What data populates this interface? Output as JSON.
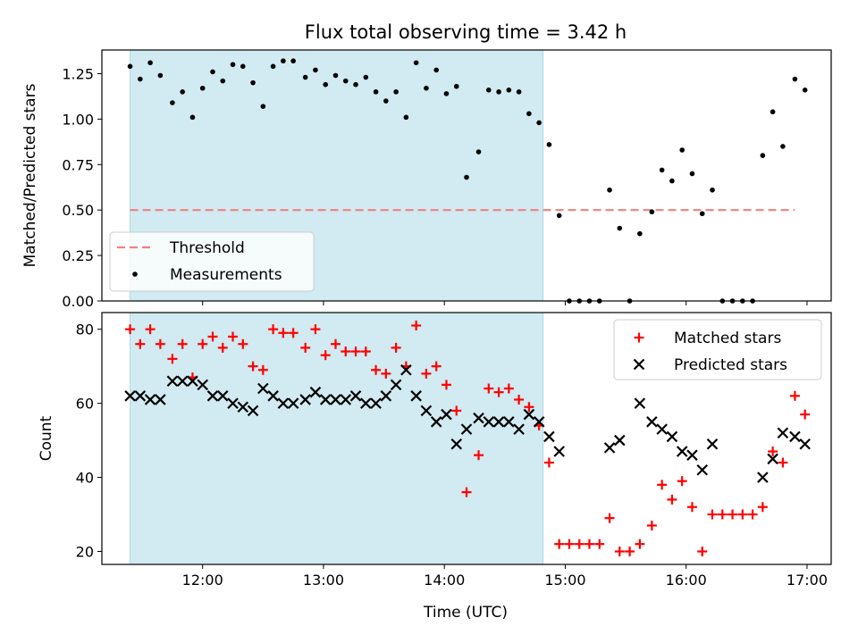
{
  "chart_data": [
    {
      "type": "scatter",
      "title": "Flux total observing time = 3.42 h",
      "ylabel": "Matched/Predicted stars",
      "xlabel": "",
      "ylim": [
        0,
        1.38
      ],
      "xlim": [
        "11:10",
        "17:12"
      ],
      "xticks": [
        "12:00",
        "13:00",
        "14:00",
        "15:00",
        "16:00",
        "17:00"
      ],
      "yticks": [
        "0.00",
        "0.25",
        "0.50",
        "0.75",
        "1.00",
        "1.25"
      ],
      "shaded_interval": [
        "11:24",
        "14:49"
      ],
      "shade_color": "#add8e6",
      "threshold": {
        "name": "Threshold",
        "value": 0.5,
        "x_start": "11:24",
        "x_end": "16:54",
        "color": "#f08080"
      },
      "legend": {
        "position": "bottom-left",
        "entries": [
          "Threshold",
          "Measurements"
        ]
      },
      "series": [
        {
          "name": "Measurements",
          "color": "#000000",
          "marker": "dot",
          "points": [
            [
              "11:24",
              1.29
            ],
            [
              "11:29",
              1.22
            ],
            [
              "11:34",
              1.31
            ],
            [
              "11:39",
              1.24
            ],
            [
              "11:45",
              1.09
            ],
            [
              "11:50",
              1.15
            ],
            [
              "11:55",
              1.01
            ],
            [
              "12:00",
              1.17
            ],
            [
              "12:05",
              1.26
            ],
            [
              "12:10",
              1.21
            ],
            [
              "12:15",
              1.3
            ],
            [
              "12:20",
              1.29
            ],
            [
              "12:25",
              1.2
            ],
            [
              "12:30",
              1.07
            ],
            [
              "12:35",
              1.29
            ],
            [
              "12:40",
              1.32
            ],
            [
              "12:45",
              1.32
            ],
            [
              "12:51",
              1.23
            ],
            [
              "12:56",
              1.27
            ],
            [
              "13:01",
              1.19
            ],
            [
              "13:06",
              1.24
            ],
            [
              "13:11",
              1.21
            ],
            [
              "13:16",
              1.19
            ],
            [
              "13:21",
              1.23
            ],
            [
              "13:26",
              1.15
            ],
            [
              "13:31",
              1.1
            ],
            [
              "13:36",
              1.15
            ],
            [
              "13:41",
              1.01
            ],
            [
              "13:46",
              1.31
            ],
            [
              "13:51",
              1.17
            ],
            [
              "13:56",
              1.27
            ],
            [
              "14:01",
              1.14
            ],
            [
              "14:06",
              1.18
            ],
            [
              "14:11",
              0.68
            ],
            [
              "14:17",
              0.82
            ],
            [
              "14:22",
              1.16
            ],
            [
              "14:27",
              1.15
            ],
            [
              "14:32",
              1.16
            ],
            [
              "14:37",
              1.15
            ],
            [
              "14:42",
              1.03
            ],
            [
              "14:47",
              0.98
            ],
            [
              "14:52",
              0.86
            ],
            [
              "14:57",
              0.47
            ],
            [
              "15:02",
              0.0
            ],
            [
              "15:07",
              0.0
            ],
            [
              "15:12",
              0.0
            ],
            [
              "15:17",
              0.0
            ],
            [
              "15:22",
              0.61
            ],
            [
              "15:27",
              0.4
            ],
            [
              "15:32",
              0.0
            ],
            [
              "15:37",
              0.37
            ],
            [
              "15:43",
              0.49
            ],
            [
              "15:48",
              0.72
            ],
            [
              "15:53",
              0.66
            ],
            [
              "15:58",
              0.83
            ],
            [
              "16:03",
              0.7
            ],
            [
              "16:08",
              0.48
            ],
            [
              "16:13",
              0.61
            ],
            [
              "16:18",
              0.0
            ],
            [
              "16:23",
              0.0
            ],
            [
              "16:28",
              0.0
            ],
            [
              "16:33",
              0.0
            ],
            [
              "16:38",
              0.8
            ],
            [
              "16:43",
              1.04
            ],
            [
              "16:48",
              0.85
            ],
            [
              "16:54",
              1.22
            ],
            [
              "16:59",
              1.16
            ]
          ]
        }
      ]
    },
    {
      "type": "scatter",
      "title": "",
      "ylabel": "Count",
      "xlabel": "Time (UTC)",
      "ylim": [
        16.5,
        84.5
      ],
      "xlim": [
        "11:10",
        "17:12"
      ],
      "xticks": [
        "12:00",
        "13:00",
        "14:00",
        "15:00",
        "16:00",
        "17:00"
      ],
      "yticks": [
        "20",
        "40",
        "60",
        "80"
      ],
      "shaded_interval": [
        "11:24",
        "14:49"
      ],
      "shade_color": "#add8e6",
      "legend": {
        "position": "top-right",
        "entries": [
          "Matched stars",
          "Predicted stars"
        ]
      },
      "series": [
        {
          "name": "Matched stars",
          "color": "#ff0000",
          "marker": "plus",
          "points": [
            [
              "11:24",
              80
            ],
            [
              "11:29",
              76
            ],
            [
              "11:34",
              80
            ],
            [
              "11:39",
              76
            ],
            [
              "11:45",
              72
            ],
            [
              "11:50",
              76
            ],
            [
              "11:55",
              67
            ],
            [
              "12:00",
              76
            ],
            [
              "12:05",
              78
            ],
            [
              "12:10",
              75
            ],
            [
              "12:15",
              78
            ],
            [
              "12:20",
              76
            ],
            [
              "12:25",
              70
            ],
            [
              "12:30",
              69
            ],
            [
              "12:35",
              80
            ],
            [
              "12:40",
              79
            ],
            [
              "12:45",
              79
            ],
            [
              "12:51",
              75
            ],
            [
              "12:56",
              80
            ],
            [
              "13:01",
              73
            ],
            [
              "13:06",
              76
            ],
            [
              "13:11",
              74
            ],
            [
              "13:16",
              74
            ],
            [
              "13:21",
              74
            ],
            [
              "13:26",
              69
            ],
            [
              "13:31",
              68
            ],
            [
              "13:36",
              75
            ],
            [
              "13:41",
              70
            ],
            [
              "13:46",
              81
            ],
            [
              "13:51",
              68
            ],
            [
              "13:56",
              70
            ],
            [
              "14:01",
              65
            ],
            [
              "14:06",
              58
            ],
            [
              "14:11",
              36
            ],
            [
              "14:17",
              46
            ],
            [
              "14:22",
              64
            ],
            [
              "14:27",
              63
            ],
            [
              "14:32",
              64
            ],
            [
              "14:37",
              61
            ],
            [
              "14:42",
              59
            ],
            [
              "14:47",
              54
            ],
            [
              "14:52",
              44
            ],
            [
              "14:57",
              22
            ],
            [
              "15:02",
              22
            ],
            [
              "15:07",
              22
            ],
            [
              "15:12",
              22
            ],
            [
              "15:17",
              22
            ],
            [
              "15:22",
              29
            ],
            [
              "15:27",
              20
            ],
            [
              "15:32",
              20
            ],
            [
              "15:37",
              22
            ],
            [
              "15:43",
              27
            ],
            [
              "15:48",
              38
            ],
            [
              "15:53",
              34
            ],
            [
              "15:58",
              39
            ],
            [
              "16:03",
              32
            ],
            [
              "16:08",
              20
            ],
            [
              "16:13",
              30
            ],
            [
              "16:18",
              30
            ],
            [
              "16:23",
              30
            ],
            [
              "16:28",
              30
            ],
            [
              "16:33",
              30
            ],
            [
              "16:38",
              32
            ],
            [
              "16:43",
              47
            ],
            [
              "16:48",
              44
            ],
            [
              "16:54",
              62
            ],
            [
              "16:59",
              57
            ]
          ]
        },
        {
          "name": "Predicted stars",
          "color": "#000000",
          "marker": "x",
          "points": [
            [
              "11:24",
              62
            ],
            [
              "11:29",
              62
            ],
            [
              "11:34",
              61
            ],
            [
              "11:39",
              61
            ],
            [
              "11:45",
              66
            ],
            [
              "11:50",
              66
            ],
            [
              "11:55",
              66
            ],
            [
              "12:00",
              65
            ],
            [
              "12:05",
              62
            ],
            [
              "12:10",
              62
            ],
            [
              "12:15",
              60
            ],
            [
              "12:20",
              59
            ],
            [
              "12:25",
              58
            ],
            [
              "12:30",
              64
            ],
            [
              "12:35",
              62
            ],
            [
              "12:40",
              60
            ],
            [
              "12:45",
              60
            ],
            [
              "12:51",
              61
            ],
            [
              "12:56",
              63
            ],
            [
              "13:01",
              61
            ],
            [
              "13:06",
              61
            ],
            [
              "13:11",
              61
            ],
            [
              "13:16",
              62
            ],
            [
              "13:21",
              60
            ],
            [
              "13:26",
              60
            ],
            [
              "13:31",
              62
            ],
            [
              "13:36",
              65
            ],
            [
              "13:41",
              69
            ],
            [
              "13:46",
              62
            ],
            [
              "13:51",
              58
            ],
            [
              "13:56",
              55
            ],
            [
              "14:01",
              57
            ],
            [
              "14:06",
              49
            ],
            [
              "14:11",
              53
            ],
            [
              "14:17",
              56
            ],
            [
              "14:22",
              55
            ],
            [
              "14:27",
              55
            ],
            [
              "14:32",
              55
            ],
            [
              "14:37",
              53
            ],
            [
              "14:42",
              57
            ],
            [
              "14:47",
              55
            ],
            [
              "14:52",
              51
            ],
            [
              "14:57",
              47
            ],
            [
              "15:22",
              48
            ],
            [
              "15:27",
              50
            ],
            [
              "15:37",
              60
            ],
            [
              "15:43",
              55
            ],
            [
              "15:48",
              53
            ],
            [
              "15:53",
              51
            ],
            [
              "15:58",
              47
            ],
            [
              "16:03",
              46
            ],
            [
              "16:08",
              42
            ],
            [
              "16:13",
              49
            ],
            [
              "16:38",
              40
            ],
            [
              "16:43",
              45
            ],
            [
              "16:48",
              52
            ],
            [
              "16:54",
              51
            ],
            [
              "16:59",
              49
            ]
          ]
        }
      ]
    }
  ]
}
